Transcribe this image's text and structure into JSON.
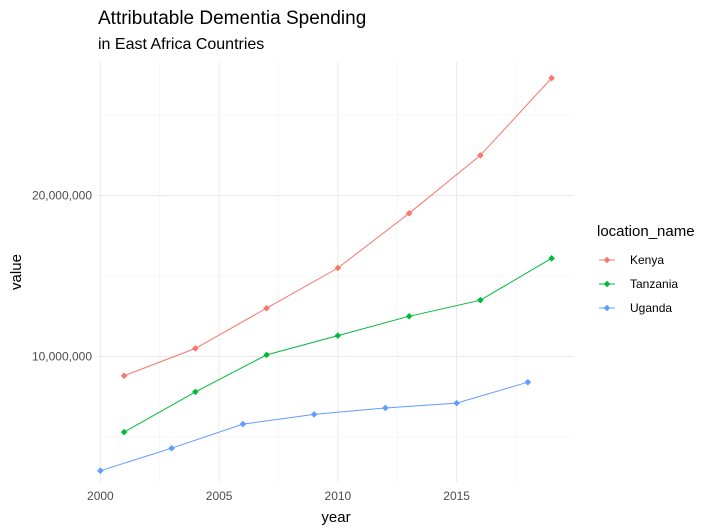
{
  "chart_data": {
    "type": "line",
    "title": "Attributable Dementia Spending",
    "subtitle": "in East Africa Countries",
    "xlabel": "year",
    "ylabel": "value",
    "xlim": [
      1999.9,
      2019.9
    ],
    "ylim": [
      2200000,
      28300000
    ],
    "x_ticks": [
      2000,
      2005,
      2010,
      2015
    ],
    "x_tick_labels": [
      "2000",
      "2005",
      "2010",
      "2015"
    ],
    "x_minor_gridlines": [
      2002.5,
      2007.5,
      2012.5,
      2017.5
    ],
    "y_ticks": [
      10000000,
      20000000
    ],
    "y_tick_labels": [
      "10,000,000",
      "20,000,000"
    ],
    "y_minor_gridlines": [
      5000000,
      15000000,
      25000000
    ],
    "grid": true,
    "legend_title": "location_name",
    "legend_position": "right",
    "series": [
      {
        "name": "Kenya",
        "color": "#F8766D",
        "x": [
          2001,
          2004,
          2007,
          2010,
          2013,
          2016,
          2019
        ],
        "values": [
          8800000,
          10500000,
          13000000,
          15500000,
          18900000,
          22500000,
          27300000
        ]
      },
      {
        "name": "Tanzania",
        "color": "#00BA38",
        "x": [
          2001,
          2004,
          2007,
          2010,
          2013,
          2016,
          2019
        ],
        "values": [
          5300000,
          7800000,
          10100000,
          11300000,
          12500000,
          13500000,
          16100000
        ]
      },
      {
        "name": "Uganda",
        "color": "#619CFF",
        "x": [
          2000,
          2003,
          2006,
          2009,
          2012,
          2015,
          2018
        ],
        "values": [
          2900000,
          4300000,
          5800000,
          6400000,
          6800000,
          7100000,
          8400000
        ]
      }
    ]
  }
}
